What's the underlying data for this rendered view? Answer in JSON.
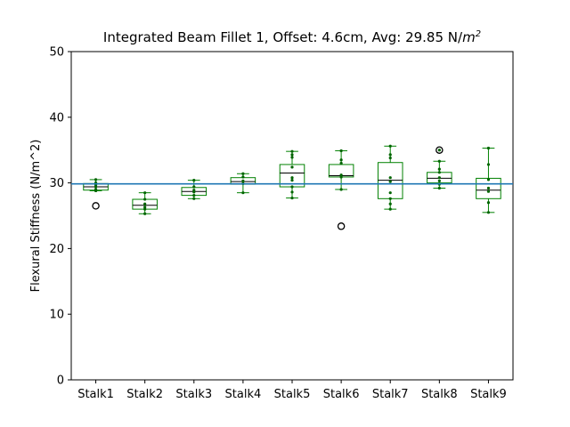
{
  "chart_data": {
    "type": "box",
    "title": {
      "main": "Integrated Beam Fillet 1, Offset: 4.6cm, Avg: 29.85 N/",
      "unit_base": "m",
      "unit_exp": "2"
    },
    "xlabel": "",
    "ylabel": "Flexural Stiffness (N/m^2)",
    "ylim": [
      0,
      50
    ],
    "yticks": [
      "0",
      "10",
      "20",
      "30",
      "40",
      "50"
    ],
    "categories": [
      "Stalk1",
      "Stalk2",
      "Stalk3",
      "Stalk4",
      "Stalk5",
      "Stalk6",
      "Stalk7",
      "Stalk8",
      "Stalk9"
    ],
    "average_line": 29.85,
    "grid": false,
    "colors": {
      "box": "#008000",
      "median": "#000000",
      "points": "#006400",
      "average_line": "#1f77b4",
      "outlier": "#000000"
    },
    "boxes": [
      {
        "name": "Stalk1",
        "whislo": 28.8,
        "q1": 28.9,
        "med": 29.4,
        "q3": 29.9,
        "whishi": 30.5,
        "fliers": [
          26.5
        ],
        "points": [
          28.8,
          29.0,
          29.4,
          29.7,
          30.0,
          30.5
        ]
      },
      {
        "name": "Stalk2",
        "whislo": 25.3,
        "q1": 26.0,
        "med": 26.6,
        "q3": 27.5,
        "whishi": 28.5,
        "fliers": [],
        "points": [
          25.3,
          26.0,
          26.3,
          26.8,
          27.5,
          28.5
        ]
      },
      {
        "name": "Stalk3",
        "whislo": 27.6,
        "q1": 28.1,
        "med": 28.7,
        "q3": 29.3,
        "whishi": 30.4,
        "fliers": [],
        "points": [
          27.6,
          28.1,
          28.6,
          28.9,
          29.4,
          30.4
        ]
      },
      {
        "name": "Stalk4",
        "whislo": 28.5,
        "q1": 29.8,
        "med": 30.2,
        "q3": 30.8,
        "whishi": 31.4,
        "fliers": [],
        "points": [
          28.5,
          29.9,
          30.3,
          30.9,
          31.4
        ]
      },
      {
        "name": "Stalk5",
        "whislo": 27.7,
        "q1": 29.4,
        "med": 31.5,
        "q3": 32.8,
        "whishi": 34.8,
        "fliers": [],
        "points": [
          27.7,
          28.6,
          29.4,
          30.4,
          30.8,
          32.4,
          33.9,
          34.3,
          34.8
        ]
      },
      {
        "name": "Stalk6",
        "whislo": 29.0,
        "q1": 30.9,
        "med": 31.1,
        "q3": 32.8,
        "whishi": 34.9,
        "fliers": [
          23.4
        ],
        "points": [
          29.0,
          30.9,
          31.2,
          33.0,
          33.5,
          34.9
        ]
      },
      {
        "name": "Stalk7",
        "whislo": 26.0,
        "q1": 27.6,
        "med": 30.4,
        "q3": 33.1,
        "whishi": 35.6,
        "fliers": [],
        "points": [
          26.0,
          26.8,
          27.6,
          28.5,
          30.2,
          30.8,
          33.8,
          34.3,
          35.6
        ]
      },
      {
        "name": "Stalk8",
        "whislo": 29.2,
        "q1": 30.0,
        "med": 30.7,
        "q3": 31.6,
        "whishi": 33.3,
        "fliers": [
          35.0
        ],
        "points": [
          29.2,
          29.8,
          30.3,
          30.8,
          31.6,
          32.1,
          33.3,
          35.0
        ]
      },
      {
        "name": "Stalk9",
        "whislo": 25.5,
        "q1": 27.6,
        "med": 28.9,
        "q3": 30.7,
        "whishi": 35.3,
        "fliers": [],
        "points": [
          25.5,
          27.0,
          28.7,
          29.2,
          30.5,
          32.8,
          35.3
        ]
      }
    ]
  }
}
